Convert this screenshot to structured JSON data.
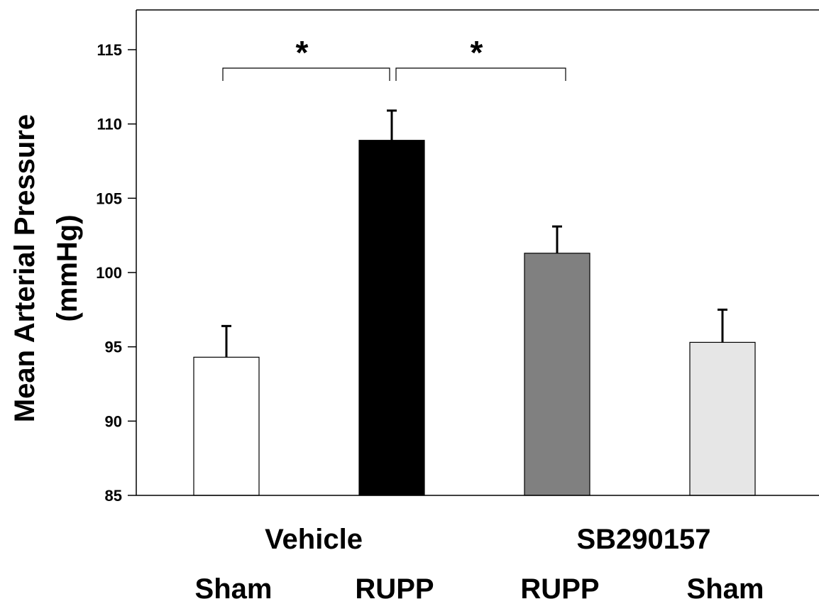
{
  "chart_data": {
    "type": "bar",
    "ylabel": [
      "Mean Arterial Pressure",
      "(mmHg)"
    ],
    "ylim": [
      85,
      117
    ],
    "yticks": [
      85,
      90,
      95,
      100,
      105,
      110,
      115
    ],
    "categories": [
      "Sham",
      "RUPP",
      "RUPP",
      "Sham"
    ],
    "groups": [
      {
        "label": "Vehicle",
        "members": [
          0,
          1
        ]
      },
      {
        "label": "SB290157",
        "members": [
          2,
          3
        ]
      }
    ],
    "values": [
      94.3,
      108.9,
      101.3,
      95.3
    ],
    "errors": [
      2.1,
      2.0,
      1.8,
      2.2
    ],
    "bar_colors": [
      "#ffffff",
      "#000000",
      "#808080",
      "#e6e6e6"
    ],
    "significance": [
      {
        "from": 0,
        "to": 1,
        "label": "*"
      },
      {
        "from": 1,
        "to": 2,
        "label": "*"
      }
    ],
    "grid": false,
    "legend": false
  }
}
